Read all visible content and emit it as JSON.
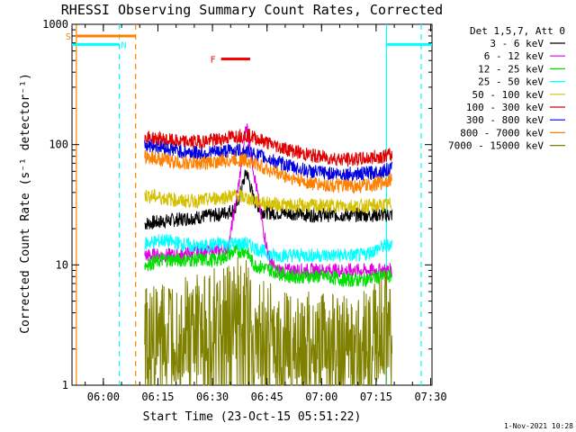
{
  "chart_data": {
    "type": "line",
    "title": "RHESSI Observing Summary Count Rates, Corrected",
    "xlabel": "Start Time (23-Oct-15 05:51:22)",
    "ylabel": "Corrected Count Rate (s⁻¹ detector⁻¹)",
    "yscale": "log",
    "ylim": [
      1,
      1000
    ],
    "xlim_minutes": [
      0,
      99
    ],
    "x_ticks": [
      {
        "label": "06:00",
        "minutes": 8.63
      },
      {
        "label": "06:15",
        "minutes": 23.63
      },
      {
        "label": "06:30",
        "minutes": 38.63
      },
      {
        "label": "06:45",
        "minutes": 53.63
      },
      {
        "label": "07:00",
        "minutes": 68.63
      },
      {
        "label": "07:15",
        "minutes": 83.63
      },
      {
        "label": "07:30",
        "minutes": 98.63
      }
    ],
    "y_ticks": [
      {
        "label": "1",
        "value": 1
      },
      {
        "label": "10",
        "value": 10
      },
      {
        "label": "100",
        "value": 100
      },
      {
        "label": "1000",
        "value": 1000
      }
    ],
    "legend_title": "Det 1,5,7, Att 0",
    "legend_placement": "right",
    "series": [
      {
        "name": "3 - 6 keV",
        "color": "#000000",
        "points": [
          [
            20,
            22
          ],
          [
            25,
            23
          ],
          [
            30,
            24
          ],
          [
            35,
            25
          ],
          [
            40,
            26
          ],
          [
            45,
            29
          ],
          [
            48,
            60
          ],
          [
            50,
            35
          ],
          [
            52,
            28
          ],
          [
            55,
            27
          ],
          [
            60,
            27
          ],
          [
            65,
            26
          ],
          [
            70,
            26
          ],
          [
            75,
            26
          ],
          [
            80,
            26
          ],
          [
            85,
            26
          ],
          [
            88,
            26
          ]
        ]
      },
      {
        "name": "6 - 12 keV",
        "color": "#e000e0",
        "points": [
          [
            20,
            12
          ],
          [
            25,
            12
          ],
          [
            30,
            12
          ],
          [
            35,
            13
          ],
          [
            40,
            13
          ],
          [
            43,
            14
          ],
          [
            46,
            50
          ],
          [
            48,
            150
          ],
          [
            50,
            60
          ],
          [
            52,
            25
          ],
          [
            54,
            12
          ],
          [
            56,
            9
          ],
          [
            60,
            9
          ],
          [
            65,
            9
          ],
          [
            70,
            9
          ],
          [
            75,
            9
          ],
          [
            80,
            9
          ],
          [
            85,
            9
          ],
          [
            88,
            9
          ]
        ]
      },
      {
        "name": "12 - 25 keV",
        "color": "#00e000",
        "points": [
          [
            20,
            10
          ],
          [
            25,
            11
          ],
          [
            30,
            11
          ],
          [
            35,
            11
          ],
          [
            40,
            11
          ],
          [
            45,
            13
          ],
          [
            48,
            13
          ],
          [
            50,
            10
          ],
          [
            55,
            9
          ],
          [
            60,
            8
          ],
          [
            65,
            8
          ],
          [
            70,
            8
          ],
          [
            75,
            7.5
          ],
          [
            80,
            7.5
          ],
          [
            85,
            8
          ],
          [
            88,
            8
          ]
        ]
      },
      {
        "name": "25 - 50 keV",
        "color": "#00ffff",
        "points": [
          [
            20,
            15
          ],
          [
            25,
            16
          ],
          [
            30,
            15
          ],
          [
            35,
            14
          ],
          [
            40,
            15
          ],
          [
            45,
            15
          ],
          [
            48,
            15
          ],
          [
            50,
            14
          ],
          [
            55,
            12
          ],
          [
            60,
            12
          ],
          [
            65,
            12
          ],
          [
            70,
            12
          ],
          [
            75,
            12
          ],
          [
            80,
            12
          ],
          [
            85,
            14
          ],
          [
            88,
            15
          ]
        ]
      },
      {
        "name": "50 - 100 keV",
        "color": "#d4c000",
        "points": [
          [
            20,
            38
          ],
          [
            25,
            36
          ],
          [
            30,
            34
          ],
          [
            35,
            34
          ],
          [
            40,
            36
          ],
          [
            45,
            38
          ],
          [
            48,
            36
          ],
          [
            52,
            33
          ],
          [
            56,
            32
          ],
          [
            60,
            31
          ],
          [
            65,
            31
          ],
          [
            70,
            31
          ],
          [
            75,
            31
          ],
          [
            80,
            31
          ],
          [
            85,
            31
          ],
          [
            88,
            32
          ]
        ]
      },
      {
        "name": "100 - 300 keV",
        "color": "#e00000",
        "points": [
          [
            20,
            115
          ],
          [
            25,
            110
          ],
          [
            30,
            105
          ],
          [
            35,
            106
          ],
          [
            40,
            110
          ],
          [
            45,
            118
          ],
          [
            48,
            120
          ],
          [
            50,
            115
          ],
          [
            55,
            100
          ],
          [
            60,
            90
          ],
          [
            65,
            82
          ],
          [
            70,
            78
          ],
          [
            75,
            75
          ],
          [
            80,
            76
          ],
          [
            85,
            80
          ],
          [
            88,
            82
          ]
        ]
      },
      {
        "name": "300 - 800 keV",
        "color": "#0000e0",
        "points": [
          [
            20,
            100
          ],
          [
            25,
            95
          ],
          [
            30,
            88
          ],
          [
            35,
            85
          ],
          [
            40,
            87
          ],
          [
            45,
            90
          ],
          [
            48,
            88
          ],
          [
            50,
            84
          ],
          [
            55,
            74
          ],
          [
            60,
            66
          ],
          [
            65,
            60
          ],
          [
            70,
            58
          ],
          [
            75,
            57
          ],
          [
            80,
            57
          ],
          [
            85,
            60
          ],
          [
            88,
            63
          ]
        ]
      },
      {
        "name": "800 - 7000 keV",
        "color": "#ff8000",
        "points": [
          [
            20,
            80
          ],
          [
            25,
            75
          ],
          [
            30,
            70
          ],
          [
            35,
            70
          ],
          [
            40,
            72
          ],
          [
            45,
            75
          ],
          [
            48,
            74
          ],
          [
            50,
            70
          ],
          [
            55,
            60
          ],
          [
            60,
            53
          ],
          [
            65,
            48
          ],
          [
            70,
            46
          ],
          [
            75,
            45
          ],
          [
            80,
            45
          ],
          [
            85,
            48
          ],
          [
            88,
            52
          ]
        ]
      },
      {
        "name": "7000 - 15000 keV",
        "color": "#808000",
        "points": [
          [
            20,
            2.5
          ],
          [
            25,
            2.5
          ],
          [
            30,
            2.8
          ],
          [
            35,
            3.0
          ],
          [
            40,
            3.5
          ],
          [
            45,
            4.5
          ],
          [
            48,
            4.2
          ],
          [
            50,
            3.2
          ],
          [
            55,
            2.5
          ],
          [
            60,
            2.2
          ],
          [
            65,
            2.2
          ],
          [
            70,
            2.1
          ],
          [
            75,
            2.1
          ],
          [
            80,
            2.2
          ],
          [
            85,
            2.8
          ],
          [
            88,
            3.8
          ]
        ]
      }
    ],
    "markers": [
      {
        "label": "S",
        "color": "#ff8000",
        "x_start": 1.2,
        "x_end": 17.5,
        "y": 800
      },
      {
        "label": "N",
        "color": "#00ffff",
        "x_start": 0,
        "x_end": 13,
        "y": 680
      },
      {
        "label": "",
        "color": "#00ffff",
        "x_start": 86.5,
        "x_end": 99,
        "y": 680
      },
      {
        "label": "F",
        "color": "#ff0000",
        "x_start": 41,
        "x_end": 49,
        "y": 515
      }
    ],
    "vlines": [
      {
        "x": 1.2,
        "color": "#ff8000",
        "style": "solid"
      },
      {
        "x": 17.5,
        "color": "#ff8000",
        "style": "dashed"
      },
      {
        "x": 13,
        "color": "#00ffff",
        "style": "dashed"
      },
      {
        "x": 86.5,
        "color": "#00ffff",
        "style": "solid"
      },
      {
        "x": 96,
        "color": "#00ffff",
        "style": "dashed"
      }
    ],
    "timestamp": "1-Nov-2021 10:28"
  }
}
